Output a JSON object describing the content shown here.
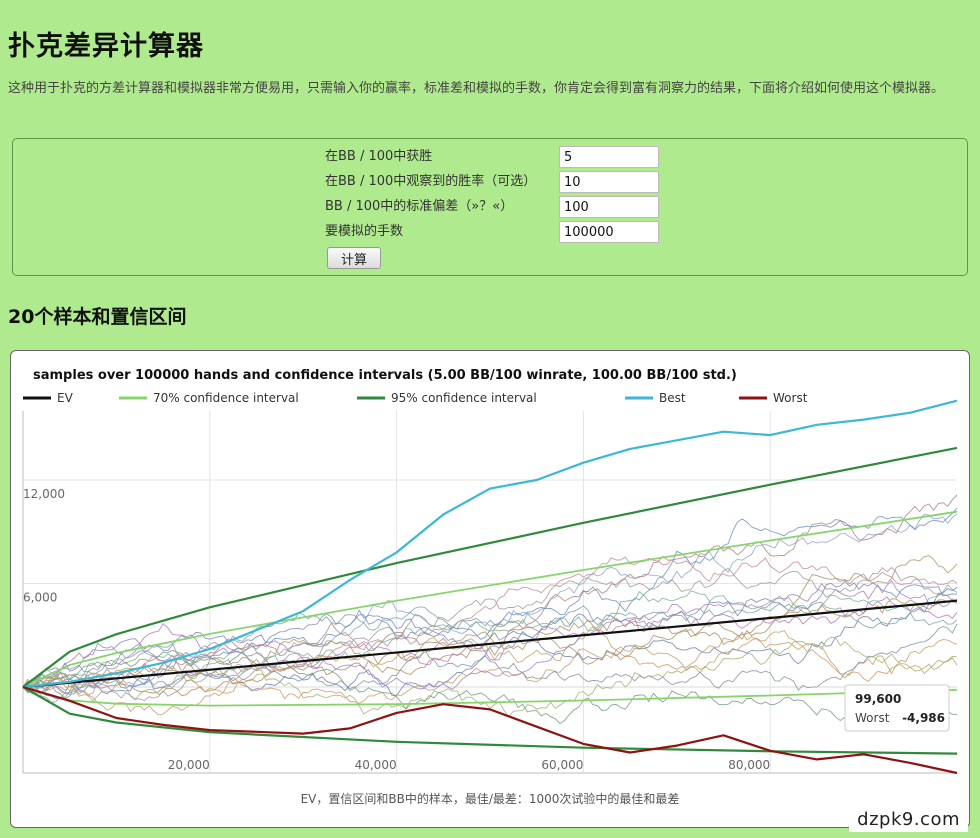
{
  "page": {
    "title": "扑克差异计算器",
    "intro": "这种用于扑克的方差计算器和模拟器非常方便易用，只需输入你的赢率，标准差和模拟的手数，你肯定会得到富有洞察力的结果，下面将介绍如何使用这个模拟器。"
  },
  "form": {
    "fields": [
      {
        "label": "在BB / 100中获胜",
        "value": "5"
      },
      {
        "label": "在BB / 100中观察到的胜率（可选）",
        "value": "10"
      },
      {
        "label": "BB / 100中的标准偏差（»？«）",
        "value": "100"
      },
      {
        "label": "要模拟的手数",
        "value": "100000"
      }
    ],
    "button_label": "计算"
  },
  "section": {
    "title": "20个样本和置信区间"
  },
  "chart_data": {
    "type": "line",
    "title": "samples over 100000 hands and confidence intervals (5.00 BB/100 winrate, 100.00 BB/100 std.)",
    "xlabel": "EV，置信区间和BB中的样本，最佳/最差：1000次试验中的最佳和最差",
    "ylabel": "",
    "xlim": [
      0,
      100000
    ],
    "ylim": [
      -4986,
      16000
    ],
    "x_ticks": [
      20000,
      40000,
      60000,
      80000
    ],
    "x_tick_labels": [
      "20,000",
      "40,000",
      "60,000",
      "80,000"
    ],
    "y_ticks": [
      6000,
      12000
    ],
    "y_tick_labels": [
      "6,000",
      "12,000"
    ],
    "grid": true,
    "legend_position": "top-left",
    "legend": [
      {
        "name": "EV",
        "color": "#111111"
      },
      {
        "name": "70% confidence interval",
        "color": "#86d56b"
      },
      {
        "name": "95% confidence interval",
        "color": "#2f8a3b"
      },
      {
        "name": "Best",
        "color": "#3cb7d6"
      },
      {
        "name": "Worst",
        "color": "#8e1212"
      }
    ],
    "series": [
      {
        "name": "EV",
        "x": [
          0,
          100000
        ],
        "y": [
          0,
          5000
        ]
      },
      {
        "name": "70% confidence interval upper",
        "x": [
          0,
          5000,
          10000,
          20000,
          40000,
          60000,
          80000,
          100000
        ],
        "y": [
          0,
          1277,
          1971,
          3079,
          4998,
          6784,
          8495,
          10162
        ]
      },
      {
        "name": "70% confidence interval lower",
        "x": [
          0,
          5000,
          10000,
          20000,
          40000,
          60000,
          80000,
          100000
        ],
        "y": [
          0,
          -777,
          -971,
          -1079,
          -998,
          -784,
          -495,
          -162
        ]
      },
      {
        "name": "95% confidence interval upper",
        "x": [
          0,
          5000,
          10000,
          20000,
          40000,
          60000,
          80000,
          100000
        ],
        "y": [
          0,
          2050,
          3060,
          4620,
          7180,
          9520,
          11730,
          13860
        ]
      },
      {
        "name": "95% confidence interval lower",
        "x": [
          0,
          5000,
          10000,
          20000,
          40000,
          60000,
          80000,
          100000
        ],
        "y": [
          0,
          -1550,
          -2060,
          -2620,
          -3180,
          -3520,
          -3730,
          -3860
        ]
      },
      {
        "name": "Best",
        "x": [
          0,
          5000,
          10000,
          15000,
          20000,
          25000,
          30000,
          35000,
          40000,
          45000,
          50000,
          55000,
          60000,
          65000,
          70000,
          75000,
          80000,
          85000,
          90000,
          95000,
          100000
        ],
        "y": [
          0,
          300,
          800,
          1400,
          2200,
          3300,
          4400,
          6200,
          7800,
          10000,
          11500,
          12000,
          13000,
          13800,
          14300,
          14800,
          14600,
          15200,
          15500,
          15900,
          16600
        ]
      },
      {
        "name": "Worst",
        "x": [
          0,
          5000,
          10000,
          15000,
          20000,
          25000,
          30000,
          35000,
          40000,
          45000,
          50000,
          55000,
          60000,
          65000,
          70000,
          75000,
          80000,
          85000,
          90000,
          95000,
          100000
        ],
        "y": [
          0,
          -800,
          -1800,
          -2200,
          -2500,
          -2600,
          -2700,
          -2400,
          -1500,
          -1000,
          -1300,
          -2300,
          -3300,
          -3800,
          -3400,
          -2800,
          -3700,
          -4200,
          -3900,
          -4400,
          -4986
        ]
      }
    ],
    "tooltip": {
      "x_label": "99,600",
      "series": "Worst",
      "value": "-4,986"
    }
  },
  "watermark": "dzpk9.com"
}
